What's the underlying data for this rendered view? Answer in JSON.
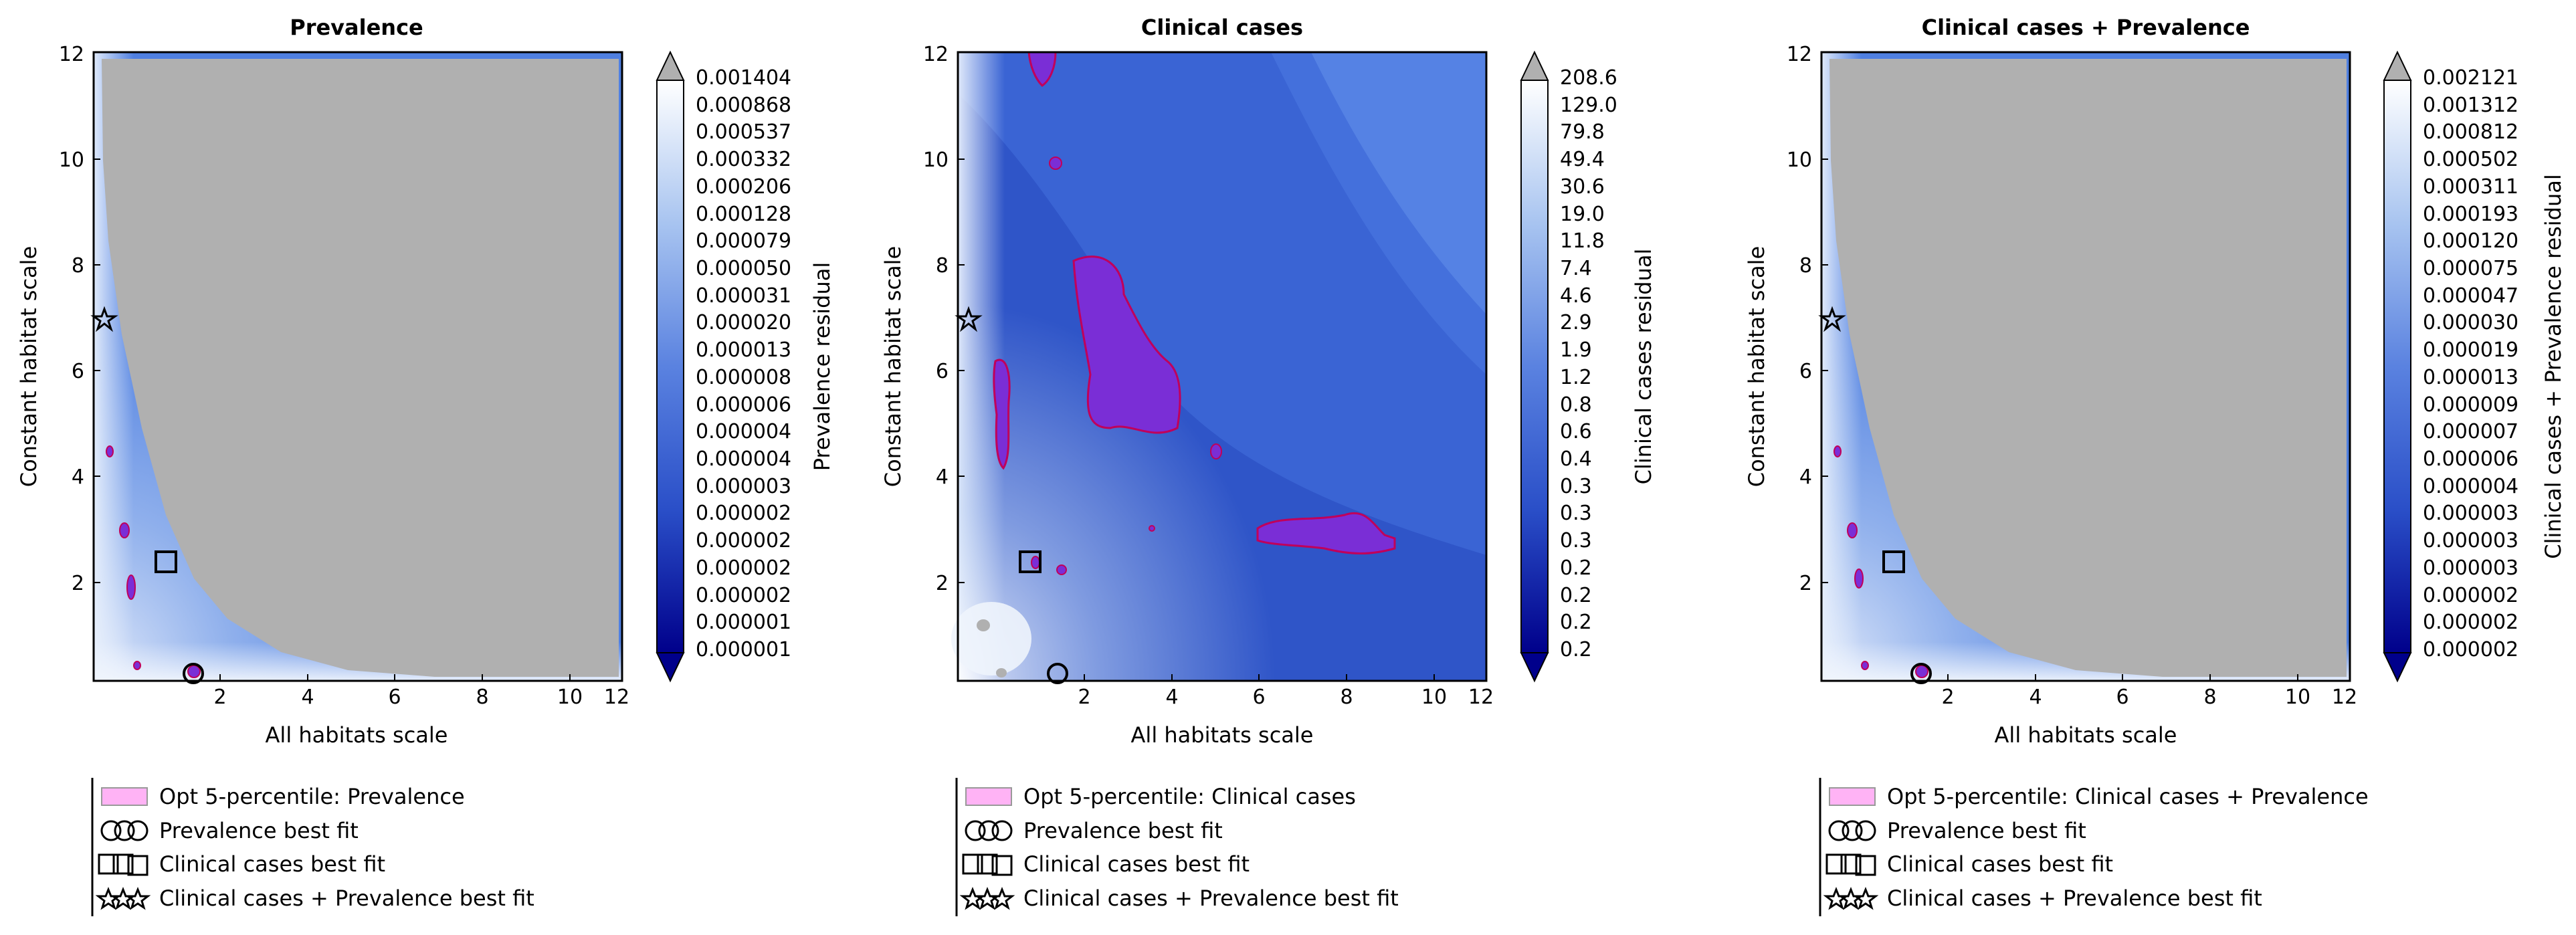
{
  "figure": {
    "panels": [
      {
        "title": "Prevalence",
        "xlabel": "All habitats scale",
        "ylabel": "Constant habitat scale",
        "cbar_label": "Prevalence residual",
        "cbar_ticks": [
          "0.001404",
          "0.000868",
          "0.000537",
          "0.000332",
          "0.000206",
          "0.000128",
          "0.000079",
          "0.000050",
          "0.000031",
          "0.000020",
          "0.000013",
          "0.000008",
          "0.000006",
          "0.000004",
          "0.000004",
          "0.000003",
          "0.000002",
          "0.000002",
          "0.000002",
          "0.000002",
          "0.000001",
          "0.000001"
        ],
        "legend": [
          "Opt 5-percentile: Prevalence",
          "Prevalence best fit",
          "Clinical cases best fit",
          "Clinical cases + Prevalence best fit"
        ]
      },
      {
        "title": "Clinical cases",
        "xlabel": "All habitats scale",
        "ylabel": "Constant habitat scale",
        "cbar_label": "Clinical cases residual",
        "cbar_ticks": [
          "208.6",
          "129.0",
          "79.8",
          "49.4",
          "30.6",
          "19.0",
          "11.8",
          "7.4",
          "4.6",
          "2.9",
          "1.9",
          "1.2",
          "0.8",
          "0.6",
          "0.4",
          "0.3",
          "0.3",
          "0.3",
          "0.2",
          "0.2",
          "0.2",
          "0.2"
        ],
        "legend": [
          "Opt 5-percentile: Clinical cases",
          "Prevalence best fit",
          "Clinical cases best fit",
          "Clinical cases + Prevalence best fit"
        ]
      },
      {
        "title": "Clinical cases + Prevalence",
        "xlabel": "All habitats scale",
        "ylabel": "Constant habitat scale",
        "cbar_label": "Clinical cases + Prevalence residual",
        "cbar_ticks": [
          "0.002121",
          "0.001312",
          "0.000812",
          "0.000502",
          "0.000311",
          "0.000193",
          "0.000120",
          "0.000075",
          "0.000047",
          "0.000030",
          "0.000019",
          "0.000013",
          "0.000009",
          "0.000007",
          "0.000006",
          "0.000004",
          "0.000003",
          "0.000003",
          "0.000003",
          "0.000002",
          "0.000002",
          "0.000002"
        ],
        "legend": [
          "Opt 5-percentile: Clinical cases + Prevalence",
          "Prevalence best fit",
          "Clinical cases best fit",
          "Clinical cases + Prevalence best fit"
        ]
      }
    ]
  },
  "chart_data": [
    {
      "type": "heatmap",
      "title": "Prevalence",
      "xlabel": "All habitats scale",
      "ylabel": "Constant habitat scale",
      "xlim": [
        0.1,
        12.1
      ],
      "ylim": [
        0.1,
        12.1
      ],
      "xticks": [
        2,
        4,
        6,
        8,
        10,
        12
      ],
      "yticks": [
        2,
        4,
        6,
        8,
        10,
        12
      ],
      "colorbar_label": "Prevalence residual",
      "colorbar_ticks": [
        "0.001404",
        "0.000868",
        "0.000537",
        "0.000332",
        "0.000206",
        "0.000128",
        "0.000079",
        "0.000050",
        "0.000031",
        "0.000020",
        "0.000013",
        "0.000008",
        "0.000006",
        "0.000004",
        "0.000004",
        "0.000003",
        "0.000002",
        "0.000002",
        "0.000002",
        "0.000002",
        "0.000001",
        "0.000001"
      ],
      "colormap": "Blues_r",
      "over_color": "#b0b0b0",
      "markers": {
        "prevalence_best_fit": [
          2.3,
          0.2
        ],
        "clinical_cases_best_fit": [
          1.7,
          2.4
        ],
        "combined_best_fit": [
          0.3,
          7.0
        ]
      },
      "opt_5_percentile_regions": [
        [
          0.5,
          4.5
        ],
        [
          0.7,
          2.8
        ],
        [
          0.8,
          2.1
        ],
        [
          1.0,
          1.8
        ],
        [
          0.7,
          0.5
        ],
        [
          2.3,
          0.2
        ]
      ],
      "legend": [
        "Opt 5-percentile: Prevalence",
        "Prevalence best fit",
        "Clinical cases best fit",
        "Clinical cases + Prevalence best fit"
      ]
    },
    {
      "type": "heatmap",
      "title": "Clinical cases",
      "xlabel": "All habitats scale",
      "ylabel": "Constant habitat scale",
      "xlim": [
        0.1,
        12.1
      ],
      "ylim": [
        0.1,
        12.1
      ],
      "xticks": [
        2,
        4,
        6,
        8,
        10,
        12
      ],
      "yticks": [
        2,
        4,
        6,
        8,
        10,
        12
      ],
      "colorbar_label": "Clinical cases residual",
      "colorbar_ticks": [
        "208.6",
        "129.0",
        "79.8",
        "49.4",
        "30.6",
        "19.0",
        "11.8",
        "7.4",
        "4.6",
        "2.9",
        "1.9",
        "1.2",
        "0.8",
        "0.6",
        "0.4",
        "0.3",
        "0.3",
        "0.3",
        "0.2",
        "0.2",
        "0.2",
        "0.2"
      ],
      "colormap": "Blues_r",
      "markers": {
        "prevalence_best_fit": [
          2.3,
          0.2
        ],
        "clinical_cases_best_fit": [
          1.7,
          2.4
        ],
        "combined_best_fit": [
          0.3,
          7.0
        ]
      },
      "opt_5_percentile_regions": [
        [
          4.2,
          6.5
        ],
        [
          1.1,
          5.3
        ],
        [
          8.5,
          3.0
        ],
        [
          1.9,
          11.9
        ],
        [
          2.3,
          10.0
        ],
        [
          6.0,
          4.5
        ],
        [
          4.5,
          3.0
        ]
      ],
      "legend": [
        "Opt 5-percentile: Clinical cases",
        "Prevalence best fit",
        "Clinical cases best fit",
        "Clinical cases + Prevalence best fit"
      ]
    },
    {
      "type": "heatmap",
      "title": "Clinical cases + Prevalence",
      "xlabel": "All habitats scale",
      "ylabel": "Constant habitat scale",
      "xlim": [
        0.1,
        12.1
      ],
      "ylim": [
        0.1,
        12.1
      ],
      "xticks": [
        2,
        4,
        6,
        8,
        10,
        12
      ],
      "yticks": [
        2,
        4,
        6,
        8,
        10,
        12
      ],
      "colorbar_label": "Clinical cases + Prevalence residual",
      "colorbar_ticks": [
        "0.002121",
        "0.001312",
        "0.000812",
        "0.000502",
        "0.000311",
        "0.000193",
        "0.000120",
        "0.000075",
        "0.000047",
        "0.000030",
        "0.000019",
        "0.000013",
        "0.000009",
        "0.000007",
        "0.000006",
        "0.000004",
        "0.000003",
        "0.000003",
        "0.000003",
        "0.000002",
        "0.000002",
        "0.000002"
      ],
      "colormap": "Blues_r",
      "over_color": "#b0b0b0",
      "markers": {
        "prevalence_best_fit": [
          2.3,
          0.2
        ],
        "clinical_cases_best_fit": [
          1.7,
          2.4
        ],
        "combined_best_fit": [
          0.3,
          7.0
        ]
      },
      "opt_5_percentile_regions": [
        [
          0.5,
          4.5
        ],
        [
          0.7,
          2.8
        ],
        [
          0.8,
          2.1
        ],
        [
          1.0,
          1.8
        ],
        [
          2.3,
          0.2
        ]
      ],
      "legend": [
        "Opt 5-percentile: Clinical cases + Prevalence",
        "Prevalence best fit",
        "Clinical cases best fit",
        "Clinical cases + Prevalence best fit"
      ]
    }
  ]
}
